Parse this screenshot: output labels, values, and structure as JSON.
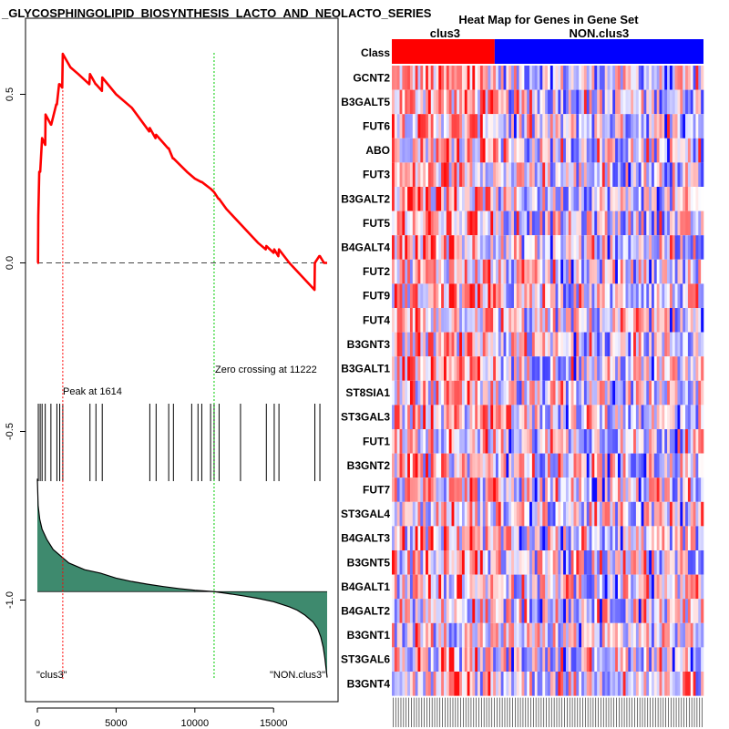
{
  "chart_data": [
    {
      "type": "line",
      "title": "_GLYCOSPHINGOLIPID_BIOSYNTHESIS_LACTO_AND_NEOLACTO_SERIES",
      "x_ticks": [
        "0",
        "5000",
        "10000",
        "15000"
      ],
      "x_tick_values": [
        0,
        5000,
        10000,
        15000
      ],
      "xlim": [
        0,
        18400
      ],
      "y_ticks": [
        "0.5",
        "0.0",
        "-0.5",
        "-1.0"
      ],
      "y_tick_values": [
        0.5,
        0.0,
        -0.5,
        -1.0
      ],
      "ylim": [
        -1.3,
        0.7
      ],
      "series": [
        {
          "name": "running enrichment score",
          "color": "#ff0000",
          "x": [
            0,
            40,
            60,
            120,
            180,
            300,
            500,
            520,
            860,
            880,
            1200,
            1240,
            1380,
            1420,
            1580,
            1614,
            2100,
            2600,
            3300,
            3340,
            3700,
            3720,
            4100,
            4120,
            5000,
            6000,
            7100,
            7140,
            7500,
            7540,
            8300,
            8340,
            8600,
            8640,
            9500,
            10000,
            10400,
            10440,
            11000,
            11222,
            11500,
            11540,
            12000,
            13000,
            14000,
            14500,
            14540,
            15000,
            15040,
            15300,
            15340,
            16000,
            17000,
            17600,
            17620,
            17900,
            17940,
            18200,
            18400
          ],
          "y": [
            0.0,
            0.0,
            0.14,
            0.27,
            0.27,
            0.37,
            0.35,
            0.44,
            0.41,
            0.41,
            0.47,
            0.47,
            0.53,
            0.53,
            0.52,
            0.62,
            0.58,
            0.56,
            0.53,
            0.56,
            0.53,
            0.53,
            0.51,
            0.55,
            0.5,
            0.46,
            0.39,
            0.4,
            0.37,
            0.38,
            0.34,
            0.34,
            0.31,
            0.31,
            0.27,
            0.25,
            0.24,
            0.24,
            0.22,
            0.21,
            0.19,
            0.19,
            0.16,
            0.11,
            0.06,
            0.04,
            0.05,
            0.03,
            0.04,
            0.02,
            0.04,
            0.0,
            -0.05,
            -0.08,
            0.0,
            0.02,
            0.02,
            0.0,
            0.0
          ]
        }
      ],
      "hits": [
        60,
        180,
        300,
        500,
        860,
        1240,
        1420,
        1614,
        3340,
        3720,
        4120,
        7140,
        7540,
        8340,
        8640,
        9800,
        10200,
        10440,
        11000,
        11222,
        11540,
        12900,
        14540,
        15040,
        15340,
        17620,
        17940
      ],
      "ranked_metric": {
        "x": [
          0,
          50,
          150,
          300,
          600,
          1000,
          1500,
          2000,
          3000,
          4000,
          5000,
          6000,
          7000,
          8000,
          9000,
          10000,
          11222,
          12000,
          13000,
          14000,
          15000,
          16000,
          16500,
          17000,
          17500,
          17800,
          18000,
          18150,
          18250,
          18300,
          18400
        ],
        "y": [
          -0.64,
          -0.72,
          -0.76,
          -0.79,
          -0.82,
          -0.85,
          -0.87,
          -0.89,
          -0.91,
          -0.92,
          -0.935,
          -0.945,
          -0.953,
          -0.96,
          -0.966,
          -0.971,
          -0.975,
          -0.98,
          -0.987,
          -0.995,
          -1.005,
          -1.02,
          -1.03,
          -1.045,
          -1.065,
          -1.085,
          -1.11,
          -1.14,
          -1.17,
          -1.19,
          -1.23
        ],
        "baseline": -0.975,
        "color": "#3e8a6e"
      },
      "peak": {
        "x": 1614,
        "label": "Peak at 1614"
      },
      "zero_crossing": {
        "x": 11222,
        "label": "Zero crossing at 11222"
      },
      "left_label": "\"clus3\"",
      "right_label": "\"NON.clus3\""
    },
    {
      "type": "heatmap",
      "title": "Heat Map for Genes in Gene Set",
      "row_header": "Class",
      "classes": [
        {
          "name": "clus3",
          "color": "#ff0000",
          "fraction": 0.33
        },
        {
          "name": "NON.clus3",
          "color": "#0000ff",
          "fraction": 0.67
        }
      ],
      "genes": [
        "GCNT2",
        "B3GALT5",
        "FUT6",
        "ABO",
        "FUT3",
        "B3GALT2",
        "FUT5",
        "B4GALT4",
        "FUT2",
        "FUT9",
        "FUT4",
        "B3GNT3",
        "B3GALT1",
        "ST8SIA1",
        "ST3GAL3",
        "FUT1",
        "B3GNT2",
        "FUT7",
        "ST3GAL4",
        "B4GALT3",
        "B3GNT5",
        "B4GALT1",
        "B4GALT2",
        "B3GNT1",
        "ST3GAL6",
        "B3GNT4"
      ],
      "sample_columns": 120,
      "color_scale": {
        "low": "#0000ff",
        "mid": "#ffffff",
        "high": "#ff0000"
      }
    }
  ]
}
